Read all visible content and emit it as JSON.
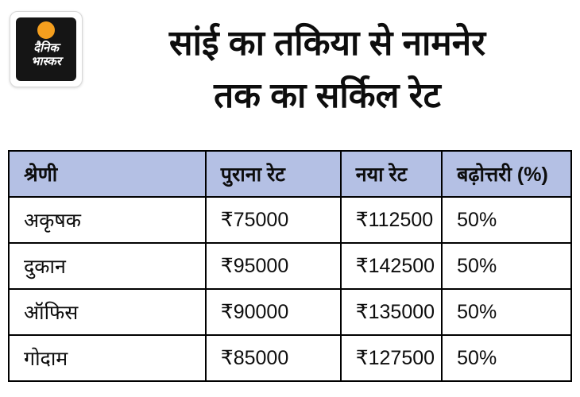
{
  "brand": {
    "name": "dainik-bhaskar",
    "logo_line1": "दैनिक",
    "logo_line2": "भास्कर"
  },
  "header": {
    "title_line1": "सांई का तकिया से नामनेर",
    "title_line2": "तक का सर्किल रेट"
  },
  "chart_data": {
    "type": "table",
    "title": "सांई का तकिया से नामनेर तक का सर्किल रेट",
    "columns": [
      "श्रेणी",
      "पुराना रेट",
      "नया रेट",
      "बढ़ोत्तरी (%)"
    ],
    "rows": [
      [
        "अकृषक",
        "₹75000",
        "₹112500",
        "50%"
      ],
      [
        "दुकान",
        "₹95000",
        "₹142500",
        "50%"
      ],
      [
        "ऑफिस",
        "₹90000",
        "₹135000",
        "50%"
      ],
      [
        "गोदाम",
        "₹85000",
        "₹127500",
        "50%"
      ]
    ]
  },
  "colors": {
    "table_header_bg": "#b4c0e4",
    "table_border": "#000000",
    "logo_sun_orange": "#f59f1e",
    "logo_bg": "#151515",
    "text": "#0d0d0d",
    "background": "#ffffff"
  }
}
